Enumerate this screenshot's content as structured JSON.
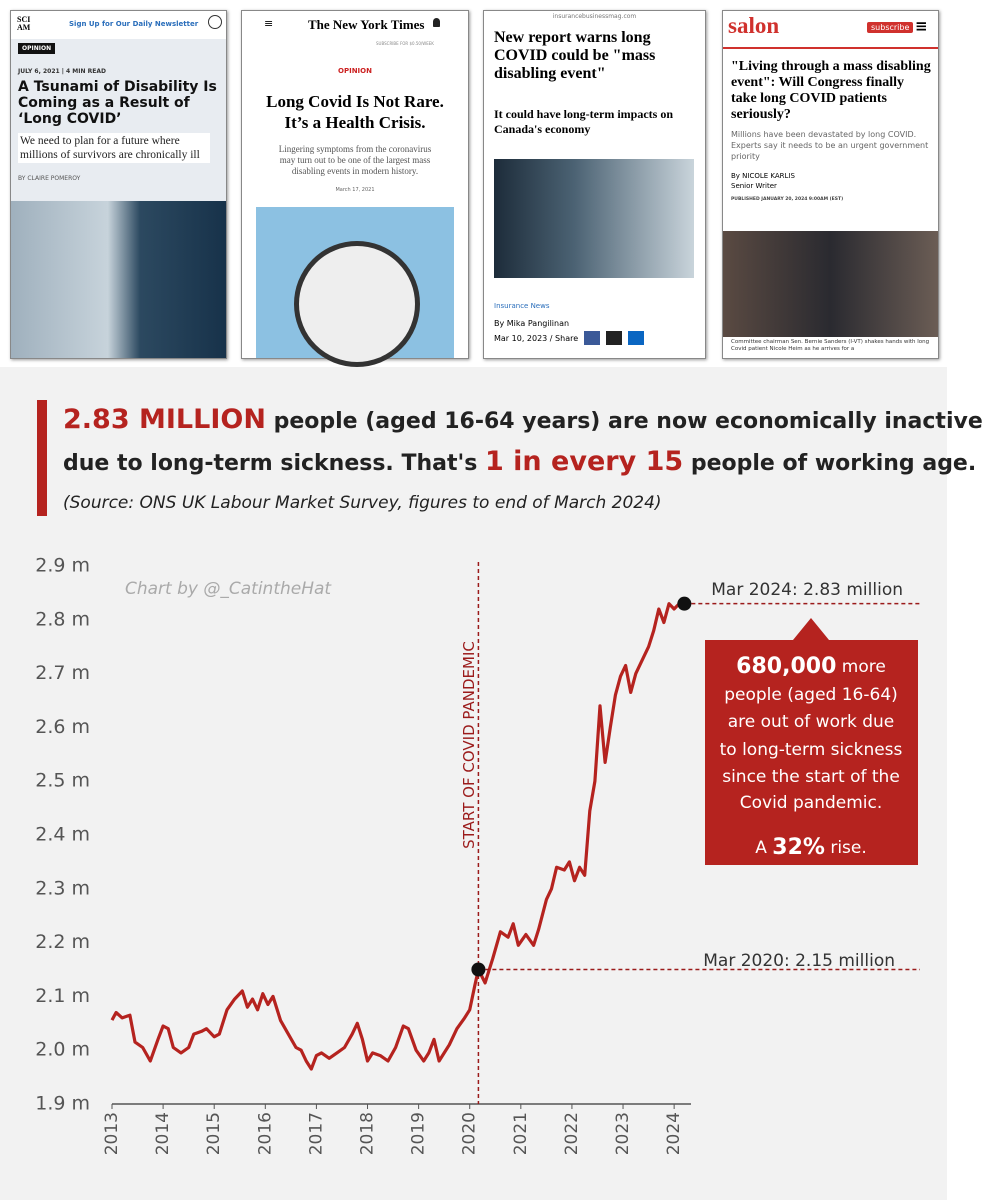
{
  "articles": [
    {
      "logo": "SCI AM",
      "banner": "Sign Up for Our Daily Newsletter",
      "kicker": "OPINION",
      "date": "JULY 6, 2021 | 4 MIN READ",
      "title": "A Tsunami of Disability Is Coming as a Result of ‘Long COVID’",
      "subtitle": "We need to plan for a future where millions of survivors are chronically ill",
      "byline": "BY CLAIRE POMEROY"
    },
    {
      "logo": "The New York Times",
      "banner": "SUBSCRIBE FOR $0.50/WEEK",
      "kicker": "OPINION",
      "title": "Long Covid Is Not Rare. It’s a Health Crisis.",
      "subtitle": "Lingering symptoms from the coronavirus may turn out to be one of the largest mass disabling events in modern history.",
      "date": "March 17, 2021"
    },
    {
      "logo": "insurancebusinessmag.com",
      "title": "New report warns long COVID could be \"mass disabling event\"",
      "subtitle": "It could have long-term impacts on Canada's economy",
      "kicker": "Insurance News",
      "byline": "By Mika Pangilinan",
      "date": "Mar 10, 2023 / Share"
    },
    {
      "logo": "salon",
      "banner": "subscribe",
      "title": "\"Living through a mass disabling event\": Will Congress finally take long COVID patients seriously?",
      "subtitle": "Millions have been devastated by long COVID. Experts say it needs to be an urgent government priority",
      "byline": "By NICOLE KARLIS",
      "role": "Senior Writer",
      "date": "PUBLISHED JANUARY 20, 2024 9:00AM (EST)",
      "caption": "Committee chairman Sen. Bernie Sanders (I-VT) shakes hands with long Covid patient Nicole Heim as he arrives for a"
    }
  ],
  "headline": {
    "lines": [
      [
        {
          "text": "2.83 MILLION",
          "emphasis": true
        },
        {
          "text": " people (aged 16-64 years) are now economically inactive",
          "emphasis": false
        }
      ],
      [
        {
          "text": "due to long-term sickness. That's ",
          "emphasis": false
        },
        {
          "text": "1 in every 15",
          "emphasis": true
        },
        {
          "text": " people of working age.",
          "emphasis": false
        }
      ]
    ],
    "source": "(Source: ONS UK Labour Market Survey, figures to end of March 2024)"
  },
  "chart_data": {
    "type": "line",
    "credit": "Chart by @_CatintheHat",
    "color": "#b5231f",
    "x": [
      2013.0,
      2013.08,
      2013.2,
      2013.35,
      2013.45,
      2013.6,
      2013.75,
      2013.9,
      2014.0,
      2014.1,
      2014.2,
      2014.35,
      2014.5,
      2014.6,
      2014.75,
      2014.85,
      2015.0,
      2015.1,
      2015.25,
      2015.4,
      2015.55,
      2015.65,
      2015.75,
      2015.85,
      2015.95,
      2016.05,
      2016.15,
      2016.3,
      2016.45,
      2016.6,
      2016.7,
      2016.8,
      2016.9,
      2017.0,
      2017.1,
      2017.25,
      2017.4,
      2017.55,
      2017.7,
      2017.8,
      2017.9,
      2018.0,
      2018.1,
      2018.25,
      2018.4,
      2018.55,
      2018.7,
      2018.8,
      2018.95,
      2019.1,
      2019.2,
      2019.3,
      2019.4,
      2019.5,
      2019.6,
      2019.75,
      2019.9,
      2020.0,
      2020.1,
      2020.17,
      2020.3,
      2020.45,
      2020.6,
      2020.75,
      2020.85,
      2020.95,
      2021.1,
      2021.25,
      2021.35,
      2021.5,
      2021.6,
      2021.7,
      2021.85,
      2021.95,
      2022.05,
      2022.15,
      2022.25,
      2022.35,
      2022.45,
      2022.55,
      2022.65,
      2022.75,
      2022.85,
      2022.95,
      2023.05,
      2023.15,
      2023.25,
      2023.35,
      2023.5,
      2023.6,
      2023.7,
      2023.8,
      2023.9,
      2024.0,
      2024.1,
      2024.2
    ],
    "values": [
      2.056,
      2.07,
      2.06,
      2.065,
      2.015,
      2.005,
      1.98,
      2.02,
      2.045,
      2.04,
      2.005,
      1.995,
      2.005,
      2.03,
      2.035,
      2.04,
      2.025,
      2.03,
      2.075,
      2.095,
      2.11,
      2.08,
      2.095,
      2.075,
      2.105,
      2.085,
      2.1,
      2.055,
      2.03,
      2.005,
      2.0,
      1.98,
      1.965,
      1.99,
      1.995,
      1.985,
      1.995,
      2.005,
      2.03,
      2.05,
      2.02,
      1.98,
      1.995,
      1.99,
      1.98,
      2.005,
      2.045,
      2.04,
      2.0,
      1.98,
      1.995,
      2.02,
      1.98,
      1.995,
      2.01,
      2.04,
      2.06,
      2.075,
      2.12,
      2.15,
      2.125,
      2.17,
      2.22,
      2.21,
      2.235,
      2.195,
      2.215,
      2.195,
      2.225,
      2.28,
      2.3,
      2.34,
      2.335,
      2.35,
      2.315,
      2.34,
      2.325,
      2.445,
      2.5,
      2.64,
      2.535,
      2.6,
      2.66,
      2.695,
      2.715,
      2.665,
      2.7,
      2.72,
      2.75,
      2.78,
      2.82,
      2.795,
      2.83,
      2.82,
      2.83,
      2.83
    ],
    "xlim": [
      2013,
      2024.33
    ],
    "xticks": [
      2013,
      2014,
      2015,
      2016,
      2017,
      2018,
      2019,
      2020,
      2021,
      2022,
      2023,
      2024
    ],
    "ylim": [
      1.9,
      2.9
    ],
    "yticks": [
      {
        "value": 1.9,
        "label": "1.9 m"
      },
      {
        "value": 2.0,
        "label": "2.0 m"
      },
      {
        "value": 2.1,
        "label": "2.1 m"
      },
      {
        "value": 2.2,
        "label": "2.2 m"
      },
      {
        "value": 2.3,
        "label": "2.3 m"
      },
      {
        "value": 2.4,
        "label": "2.4 m"
      },
      {
        "value": 2.5,
        "label": "2.5 m"
      },
      {
        "value": 2.6,
        "label": "2.6 m"
      },
      {
        "value": 2.7,
        "label": "2.7 m"
      },
      {
        "value": 2.8,
        "label": "2.8 m"
      },
      {
        "value": 2.9,
        "label": "2.9 m"
      }
    ],
    "grid": false,
    "vline": {
      "x": 2020.17,
      "label": "START OF COVID PANDEMIC"
    },
    "annotations": [
      {
        "x": 2024.2,
        "y": 2.83,
        "label": "Mar 2024: 2.83 million"
      },
      {
        "x": 2020.17,
        "y": 2.15,
        "label": "Mar 2020: 2.15 million"
      }
    ],
    "callout": [
      [
        {
          "text": "680,000",
          "emphasis": true
        },
        {
          "text": " more",
          "emphasis": false
        }
      ],
      [
        {
          "text": "people (aged 16-64)",
          "emphasis": false
        }
      ],
      [
        {
          "text": "are out of work due",
          "emphasis": false
        }
      ],
      [
        {
          "text": "to long-term sickness",
          "emphasis": false
        }
      ],
      [
        {
          "text": "since the start of the",
          "emphasis": false
        }
      ],
      [
        {
          "text": "Covid pandemic.",
          "emphasis": false
        }
      ],
      [
        {
          "text": "A ",
          "emphasis": false
        },
        {
          "text": "32%",
          "emphasis": true
        },
        {
          "text": " rise.",
          "emphasis": false
        }
      ]
    ]
  }
}
